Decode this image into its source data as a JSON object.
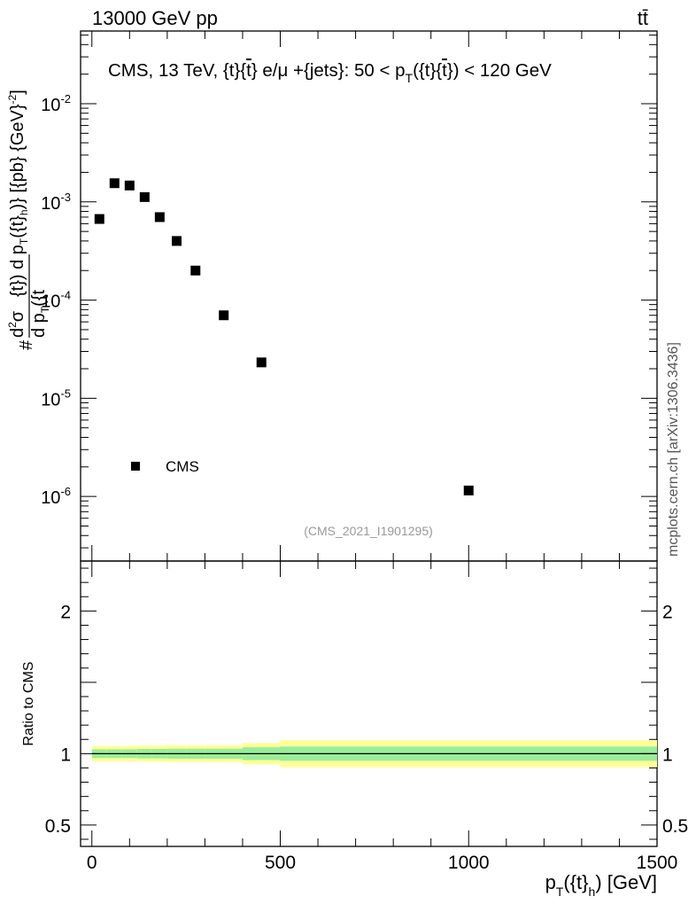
{
  "header": {
    "left": "13000 GeV pp",
    "right": "tt̄"
  },
  "side_label": "mcplots.cern.ch [arXiv:1306.3436]",
  "colors": {
    "band_outer": "#ffff99",
    "band_inner": "#99ee99",
    "marker": "#000000",
    "watermark": "#999999"
  },
  "chart_data": [
    {
      "type": "scatter",
      "title": "CMS, 13 TeV, {t}{t̄} e/μ +{jets}: 50 < p_T({t}{t̄}) < 120 GeV",
      "title_parts": {
        "prefix": "CMS, 13 TeV, {t}{",
        "tbar": "t",
        "mid": "} e/μ +{jets}: 50 <  p",
        "sub": "T",
        "open": "({t}{",
        "tbar2": "t",
        "suffix": "}) < 120 GeV"
      },
      "ylabel": "#frac{d²σ}{d p_T({t}) d p_T({t}_h)} [{pb} {GeV}⁻²]",
      "ylabel_parts": {
        "hash": "#",
        "num": "d",
        "num_sup": "2",
        "num_sigma": "σ",
        "den": "d p",
        "den_sub": "T",
        "den_tail": "({t",
        "mid": "{t}) d p",
        "mid_sub": "T",
        "mid_open": "({t}",
        "mid_h": "h",
        "unit": ")} [{pb} {GeV}",
        "unit_sup": "-2",
        "unit_close": "]"
      },
      "yscale": "log",
      "ylim": [
        2.2e-07,
        0.055
      ],
      "yticks": [
        {
          "value": 1e-06,
          "base": "10",
          "exp": "-6"
        },
        {
          "value": 1e-05,
          "base": "10",
          "exp": "-5"
        },
        {
          "value": 0.0001,
          "base": "10",
          "exp": "-4"
        },
        {
          "value": 0.001,
          "base": "10",
          "exp": "-3"
        },
        {
          "value": 0.01,
          "base": "10",
          "exp": "-2"
        }
      ],
      "xlim": [
        -30,
        1500
      ],
      "series": [
        {
          "name": "CMS",
          "x": [
            20,
            60,
            100,
            140,
            180,
            225,
            275,
            350,
            450,
            1000
          ],
          "y": [
            0.00067,
            0.00155,
            0.00147,
            0.00112,
            0.0007,
            0.0004,
            0.0002,
            7e-05,
            2.32e-05,
            1.15e-06
          ]
        }
      ],
      "legend": {
        "label": "CMS",
        "placement": "bottom-left"
      },
      "watermark": "(CMS_2021_I1901295)"
    },
    {
      "type": "area",
      "ylabel": "Ratio to CMS",
      "xlabel_parts": {
        "p": "p",
        "sub": "T",
        "open": "({t}",
        "h": "h",
        "close": ") [GeV]"
      },
      "xlim": [
        -30,
        1500
      ],
      "ylim": [
        0.35,
        2.35
      ],
      "yticks": [
        {
          "value": 0.5,
          "label": "0.5"
        },
        {
          "value": 1,
          "label": "1"
        },
        {
          "value": 2,
          "label": "2"
        }
      ],
      "xticks": [
        {
          "value": 0,
          "label": "0"
        },
        {
          "value": 500,
          "label": "500"
        },
        {
          "value": 1000,
          "label": "1000"
        },
        {
          "value": 1500,
          "label": "1500"
        }
      ],
      "reference_line": 1,
      "bins": [
        {
          "x0": 0,
          "x1": 40,
          "inner": 0.03,
          "outer": 0.055
        },
        {
          "x0": 40,
          "x1": 80,
          "inner": 0.03,
          "outer": 0.055
        },
        {
          "x0": 80,
          "x1": 120,
          "inner": 0.03,
          "outer": 0.055
        },
        {
          "x0": 120,
          "x1": 160,
          "inner": 0.033,
          "outer": 0.057
        },
        {
          "x0": 160,
          "x1": 200,
          "inner": 0.033,
          "outer": 0.057
        },
        {
          "x0": 200,
          "x1": 250,
          "inner": 0.035,
          "outer": 0.06
        },
        {
          "x0": 250,
          "x1": 300,
          "inner": 0.035,
          "outer": 0.06
        },
        {
          "x0": 300,
          "x1": 400,
          "inner": 0.035,
          "outer": 0.06
        },
        {
          "x0": 400,
          "x1": 500,
          "inner": 0.045,
          "outer": 0.075
        },
        {
          "x0": 500,
          "x1": 1500,
          "inner": 0.05,
          "outer": 0.095
        }
      ]
    }
  ]
}
